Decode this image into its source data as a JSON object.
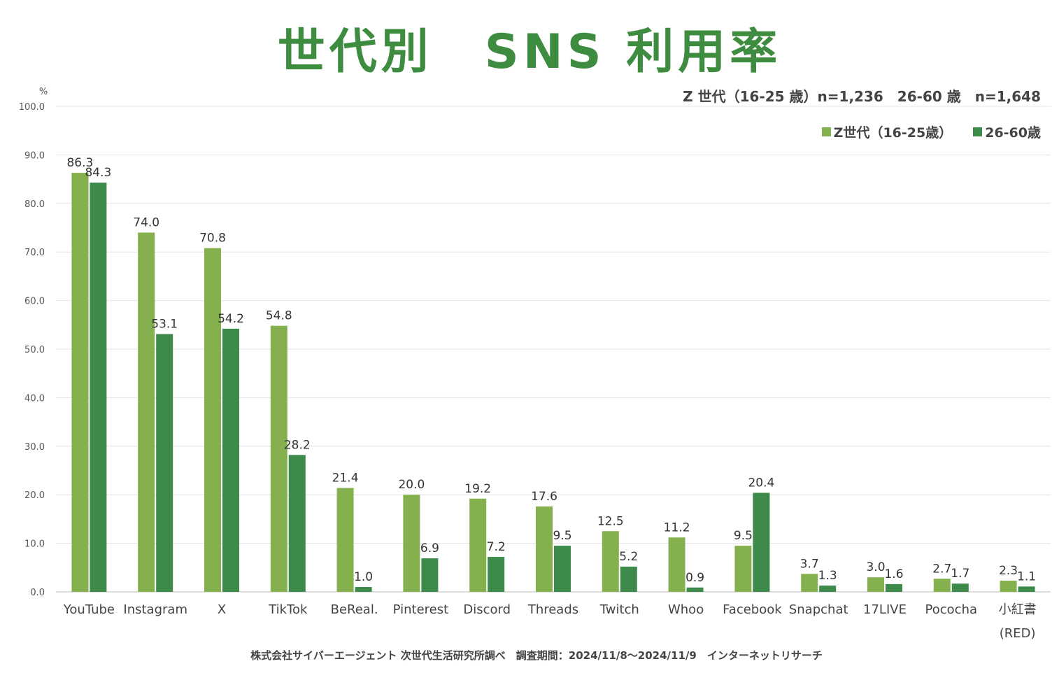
{
  "chart_data": {
    "type": "bar",
    "title": "世代別　SNS 利用率",
    "note": "Z 世代（16-25 歳）n=1,236　26-60 歳　n=1,648",
    "ylabel": "%",
    "ylim": [
      0,
      100
    ],
    "yticks": [
      "0.0",
      "10.0",
      "20.0",
      "30.0",
      "40.0",
      "50.0",
      "60.0",
      "70.0",
      "80.0",
      "90.0",
      "100.0"
    ],
    "grid": true,
    "legend_position": "top-right",
    "categories": [
      "YouTube",
      "Instagram",
      "X",
      "TikTok",
      "BeReal.",
      "Pinterest",
      "Discord",
      "Threads",
      "Twitch",
      "Whoo",
      "Facebook",
      "Snapchat",
      "17LIVE",
      "Pococha",
      "小紅書\n(RED)"
    ],
    "series": [
      {
        "name": "Z世代（16-25歳）",
        "color": "#84b04e",
        "values": [
          86.3,
          74.0,
          70.8,
          54.8,
          21.4,
          20.0,
          19.2,
          17.6,
          12.5,
          11.2,
          9.5,
          3.7,
          3.0,
          2.7,
          2.3
        ]
      },
      {
        "name": "26-60歳",
        "color": "#3e8a4a",
        "values": [
          84.3,
          53.1,
          54.2,
          28.2,
          1.0,
          6.9,
          7.2,
          9.5,
          5.2,
          0.9,
          20.4,
          1.3,
          1.6,
          1.7,
          1.1
        ]
      }
    ],
    "footer": "株式会社サイバーエージェント 次世代生活研究所調べ　調査期間：2024/11/8～2024/11/9　インターネットリサーチ"
  }
}
